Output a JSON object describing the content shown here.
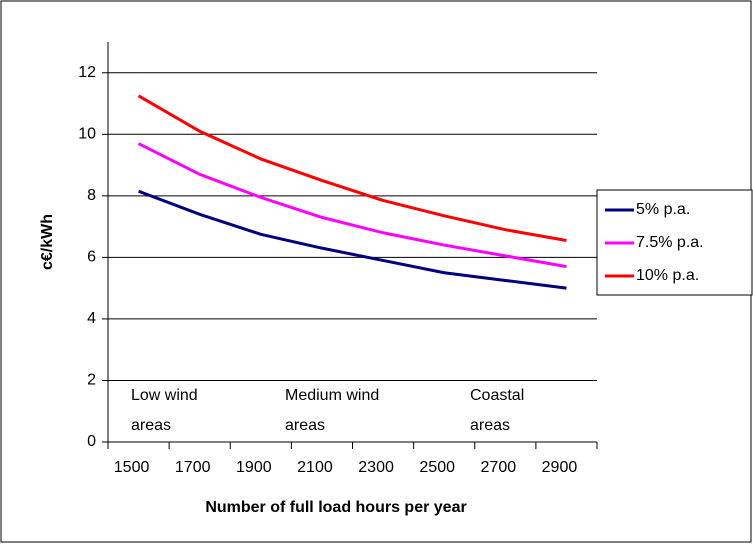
{
  "chart_data": {
    "type": "line",
    "y_label": "c€/kWh",
    "x_label": "Number of full load hours per year",
    "categories": [
      "1500",
      "1700",
      "1900",
      "2100",
      "2300",
      "2500",
      "2700",
      "2900"
    ],
    "series": [
      {
        "name": "5% p.a.",
        "color": "#000080",
        "values": [
          8.15,
          7.4,
          6.75,
          6.3,
          5.9,
          5.5,
          5.25,
          5.0
        ]
      },
      {
        "name": "7.5% p.a.",
        "color": "#ff00ff",
        "values": [
          9.7,
          8.7,
          7.95,
          7.3,
          6.8,
          6.4,
          6.05,
          5.7
        ]
      },
      {
        "name": "10% p.a.",
        "color": "#ff0000",
        "values": [
          11.25,
          10.1,
          9.2,
          8.5,
          7.85,
          7.35,
          6.9,
          6.55
        ]
      }
    ],
    "annotations": [
      {
        "lines": [
          "Low wind",
          "areas"
        ]
      },
      {
        "lines": [
          "Medium wind",
          "areas"
        ]
      },
      {
        "lines": [
          "Coastal",
          "areas"
        ]
      }
    ],
    "ylim": [
      0,
      13
    ],
    "yticks": [
      0,
      2,
      4,
      6,
      8,
      10,
      12
    ],
    "grid": true,
    "legend": "right"
  }
}
